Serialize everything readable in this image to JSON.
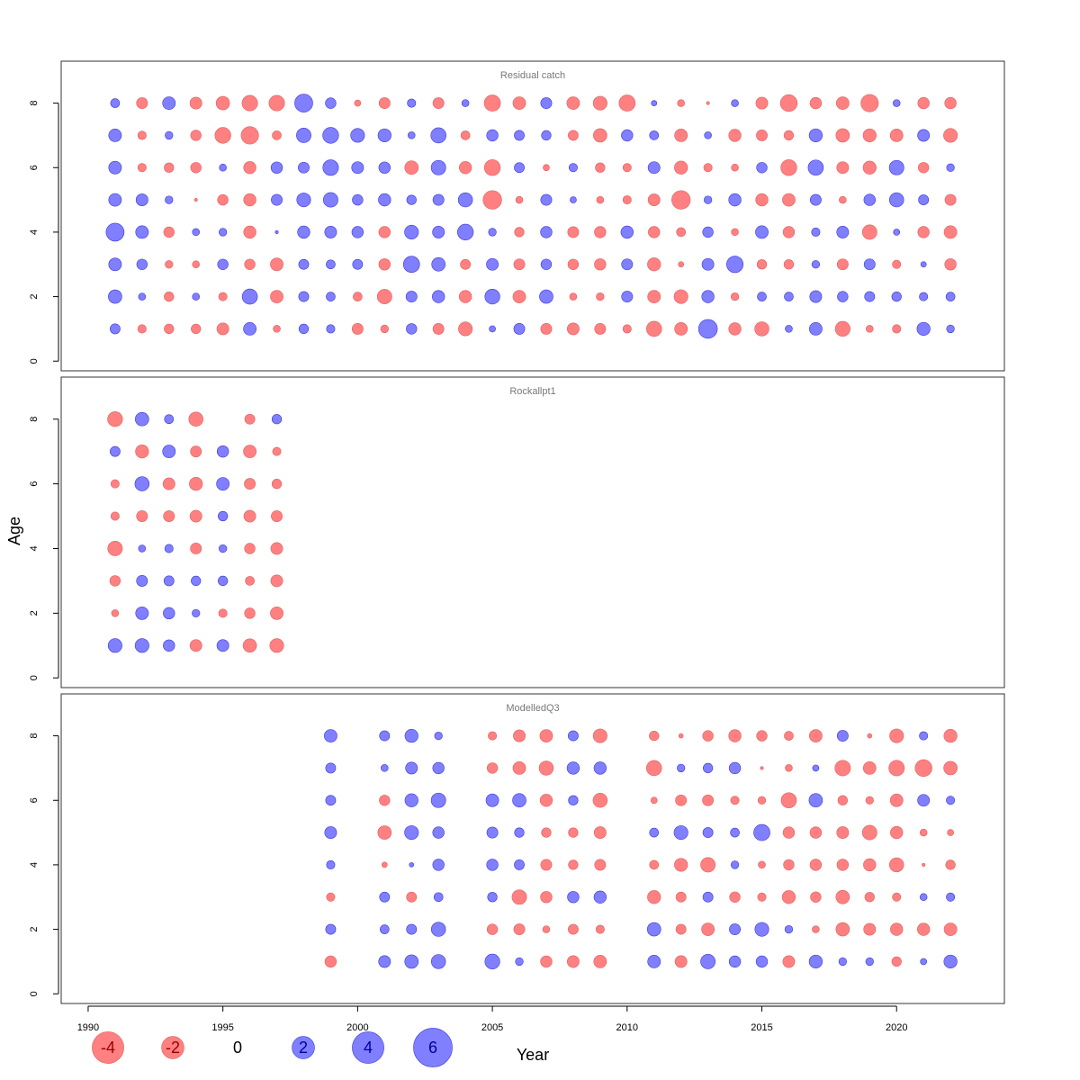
{
  "chart_data": {
    "type": "scatter",
    "subtype": "bubble",
    "xlabel": "Year",
    "ylabel": "Age",
    "xlim": [
      1989,
      2024
    ],
    "ylim": [
      -0.3,
      9.3
    ],
    "x_ticks": [
      1990,
      1995,
      2000,
      2005,
      2010,
      2015,
      2020
    ],
    "y_ticks": [
      0,
      2,
      4,
      6,
      8
    ],
    "colors": {
      "positive_fill": "#7f7fff",
      "positive_stroke": "#3b3bd9",
      "negative_fill": "#ff8080",
      "negative_stroke": "#e06060",
      "frame": "#333333",
      "panel_title": "#777777",
      "legend_negative_text": "#990000",
      "legend_positive_text": "#000099"
    },
    "legend": {
      "placement": "bottom-left",
      "values": [
        -4,
        -2,
        0,
        2,
        4,
        6
      ],
      "labels": [
        "-4",
        "-2",
        "0",
        "2",
        "4",
        "6"
      ]
    },
    "panels": [
      {
        "title": "Residual catch",
        "years": [
          1991,
          1992,
          1993,
          1994,
          1995,
          1996,
          1997,
          1998,
          1999,
          2000,
          2001,
          2002,
          2003,
          2004,
          2005,
          2006,
          2007,
          2008,
          2009,
          2010,
          2011,
          2012,
          2013,
          2014,
          2015,
          2016,
          2017,
          2018,
          2019,
          2020,
          2021,
          2022
        ],
        "ages": [
          8,
          7,
          6,
          5,
          4,
          3,
          2,
          1
        ],
        "values": [
          [
            0.8,
            -1.2,
            1.6,
            -1.4,
            -1.8,
            -2.4,
            -2.4,
            3.2,
            1.1,
            -0.4,
            -1.2,
            0.7,
            -1.2,
            0.5,
            -2.6,
            -1.6,
            1.2,
            -1.6,
            -1.9,
            -2.6,
            0.3,
            -0.5,
            -0.1,
            0.5,
            -1.4,
            -2.8,
            -1.3,
            -1.6,
            -3.0,
            0.5,
            -1.3,
            -1.3
          ],
          [
            1.6,
            -0.7,
            0.6,
            -1.1,
            -2.5,
            -3.0,
            -0.8,
            2.1,
            2.5,
            1.9,
            1.7,
            0.5,
            2.3,
            -0.8,
            1.3,
            1.0,
            0.9,
            -1.0,
            -1.8,
            1.3,
            0.8,
            -1.6,
            0.5,
            -1.5,
            -1.2,
            -0.9,
            1.7,
            -1.8,
            -1.7,
            -1.6,
            1.4,
            -1.9
          ],
          [
            1.6,
            -0.7,
            -0.9,
            -1.1,
            0.5,
            -1.5,
            1.3,
            1.2,
            2.4,
            1.4,
            1.3,
            -1.8,
            2.1,
            -1.5,
            -2.5,
            1.0,
            -0.4,
            0.7,
            -0.9,
            -0.7,
            1.4,
            -1.7,
            -0.7,
            -0.5,
            1.1,
            -2.5,
            2.3,
            -1.4,
            -1.7,
            2.1,
            -1.1,
            0.6
          ],
          [
            1.6,
            1.4,
            0.6,
            -0.1,
            -1.1,
            -1.5,
            1.2,
            1.9,
            2.1,
            1.1,
            1.5,
            0.9,
            1.2,
            2.0,
            -3.4,
            -0.5,
            1.2,
            0.4,
            -0.5,
            -0.7,
            -1.4,
            -3.4,
            0.6,
            1.5,
            -1.5,
            -1.6,
            1.2,
            -0.5,
            1.3,
            2.0,
            1.0,
            -1.2
          ],
          [
            3.2,
            1.6,
            -1.1,
            0.5,
            0.6,
            -1.5,
            0.1,
            1.5,
            1.4,
            1.3,
            -1.3,
            1.9,
            1.4,
            2.5,
            0.6,
            -0.9,
            1.3,
            -1.2,
            -1.3,
            1.5,
            -1.3,
            -0.8,
            1.1,
            -0.5,
            1.6,
            -1.3,
            0.7,
            1.4,
            -2.1,
            0.4,
            -1.3,
            -1.6
          ],
          [
            1.6,
            1.1,
            -0.6,
            -0.5,
            1.1,
            -1.1,
            -1.6,
            1.0,
            0.8,
            1.0,
            -1.3,
            2.6,
            1.8,
            -1.0,
            1.4,
            -1.2,
            1.1,
            -1.1,
            -1.3,
            1.2,
            -1.7,
            -0.3,
            1.4,
            2.7,
            -0.9,
            -0.9,
            0.6,
            -1.2,
            1.2,
            -0.7,
            0.3,
            -1.3
          ],
          [
            1.8,
            0.5,
            -0.9,
            0.5,
            -0.7,
            2.3,
            -1.6,
            1.0,
            0.8,
            -0.8,
            -2.1,
            1.2,
            1.5,
            -1.5,
            2.2,
            -1.6,
            1.8,
            -0.5,
            -0.6,
            1.2,
            -1.6,
            -1.9,
            1.5,
            -0.6,
            0.8,
            0.8,
            1.4,
            1.1,
            1.0,
            0.9,
            0.7,
            0.8
          ],
          [
            1.0,
            -0.7,
            -0.9,
            -0.9,
            -1.4,
            1.6,
            -0.5,
            0.9,
            0.7,
            -1.2,
            -0.6,
            1.1,
            -1.2,
            -1.9,
            0.4,
            1.2,
            -1.2,
            -1.4,
            -1.2,
            -0.7,
            -2.3,
            -1.6,
            3.5,
            -1.5,
            -2.0,
            0.5,
            1.6,
            -2.2,
            -0.5,
            -0.7,
            1.7,
            0.6
          ]
        ]
      },
      {
        "title": "Rockallpt1",
        "years": [
          1991,
          1992,
          1993,
          1994,
          1995,
          1996,
          1997
        ],
        "ages": [
          8,
          7,
          6,
          5,
          4,
          3,
          2,
          1
        ],
        "values": [
          [
            -2.2,
            1.8,
            0.8,
            -2.0,
            0.0,
            -1.0,
            0.9
          ],
          [
            1.0,
            -1.7,
            1.6,
            -1.2,
            1.3,
            -1.6,
            -0.7
          ],
          [
            -0.7,
            2.0,
            -1.4,
            -1.7,
            1.6,
            -1.2,
            -0.9
          ],
          [
            -0.7,
            -1.2,
            -1.2,
            -1.4,
            0.9,
            -1.4,
            -1.2
          ],
          [
            -2.1,
            0.5,
            0.7,
            -1.2,
            0.6,
            -1.1,
            -1.4
          ],
          [
            -1.1,
            1.2,
            1.0,
            0.9,
            0.9,
            -0.8,
            -1.4
          ],
          [
            -0.5,
            1.6,
            1.3,
            0.6,
            -0.7,
            -1.1,
            -1.6
          ],
          [
            1.9,
            1.9,
            1.3,
            -1.4,
            1.4,
            -1.8,
            -1.9
          ]
        ]
      },
      {
        "title": "ModelledQ3",
        "years": [
          1999,
          2000,
          2001,
          2002,
          2003,
          2004,
          2005,
          2006,
          2007,
          2008,
          2009,
          2010,
          2011,
          2012,
          2013,
          2014,
          2015,
          2016,
          2017,
          2018,
          2019,
          2020,
          2021,
          2022
        ],
        "ages": [
          8,
          7,
          6,
          5,
          4,
          3,
          2,
          1
        ],
        "values": [
          [
            1.6,
            0,
            1.0,
            1.7,
            0.6,
            0,
            -0.7,
            -1.4,
            -1.6,
            1.0,
            -1.9,
            0,
            -0.9,
            -0.2,
            -1.1,
            -1.5,
            -1.1,
            -0.8,
            -1.6,
            1.2,
            -0.2,
            -1.9,
            0.7,
            -1.7
          ],
          [
            1.0,
            0,
            0.5,
            1.4,
            1.3,
            0,
            -1.1,
            -1.6,
            -2.0,
            1.5,
            1.5,
            0,
            -2.3,
            0.6,
            0.9,
            1.3,
            -0.1,
            -0.5,
            0.4,
            -2.4,
            -1.6,
            -2.4,
            -2.8,
            -1.8
          ],
          [
            1.0,
            0,
            -1.1,
            1.7,
            2.1,
            0,
            1.6,
            1.8,
            -1.5,
            0.9,
            -2.0,
            0,
            -0.4,
            -1.2,
            -1.2,
            -0.7,
            -0.6,
            -2.3,
            1.8,
            -0.9,
            -0.6,
            -1.6,
            1.4,
            0.7
          ],
          [
            1.4,
            0,
            -1.8,
            1.9,
            1.3,
            0,
            1.2,
            0.9,
            -0.9,
            -0.9,
            -1.4,
            0,
            0.8,
            1.9,
            1.0,
            0.8,
            2.6,
            -1.3,
            -1.3,
            -1.4,
            -2.1,
            -1.5,
            -0.5,
            -0.4
          ],
          [
            0.7,
            0,
            -0.3,
            0.2,
            1.3,
            0,
            1.3,
            1.0,
            -1.2,
            -0.9,
            -1.2,
            0,
            -0.8,
            -1.7,
            -2.1,
            0.6,
            -0.5,
            -1.1,
            -1.3,
            -1.3,
            -1.5,
            -2.0,
            -0.1,
            -0.9
          ],
          [
            -0.7,
            0,
            1.0,
            -1.0,
            0.8,
            0,
            0.9,
            -2.1,
            -1.3,
            1.3,
            1.5,
            0,
            -1.7,
            -1.0,
            1.0,
            -1.1,
            -0.7,
            -1.7,
            -1.1,
            -1.8,
            -0.9,
            -0.7,
            0.5,
            0.7
          ],
          [
            1.0,
            0,
            0.8,
            1.0,
            2.0,
            0,
            -1.1,
            -1.2,
            -0.5,
            -1.0,
            -0.7,
            0,
            1.8,
            -1.0,
            -1.6,
            1.2,
            1.9,
            0.6,
            -0.5,
            -1.8,
            -1.4,
            -1.5,
            -1.5,
            -1.6
          ],
          [
            -1.3,
            0,
            1.4,
            1.8,
            2.0,
            0,
            2.2,
            0.6,
            -1.3,
            -1.4,
            -1.6,
            0,
            1.6,
            -1.4,
            2.1,
            1.3,
            1.3,
            -1.4,
            1.7,
            0.6,
            0.6,
            -0.9,
            0.4,
            1.7
          ]
        ]
      }
    ]
  }
}
